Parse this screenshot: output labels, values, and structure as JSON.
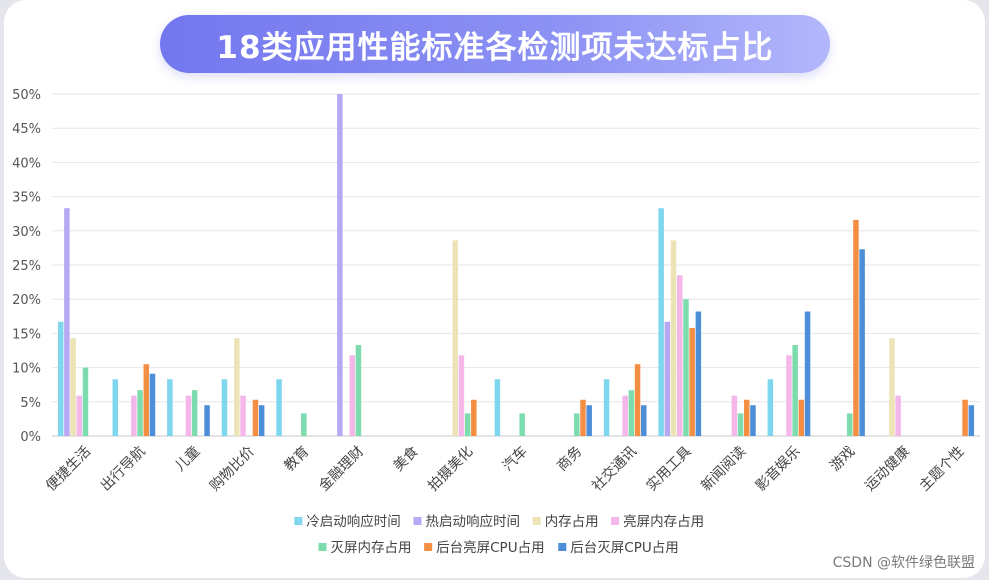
{
  "chart_data": {
    "type": "bar",
    "title": "18类应用性能标准各检测项未达标占比",
    "ylim": [
      0,
      50
    ],
    "yticks": [
      "0%",
      "5%",
      "10%",
      "15%",
      "20%",
      "25%",
      "30%",
      "35%",
      "40%",
      "45%",
      "50%"
    ],
    "grid": true,
    "legend_placement": "bottom",
    "categories": [
      "便捷生活",
      "出行导航",
      "儿童",
      "购物比价",
      "教育",
      "金融理财",
      "美食",
      "拍摄美化",
      "汽车",
      "商务",
      "社交通讯",
      "实用工具",
      "新闻阅读",
      "影音娱乐",
      "游戏",
      "运动健康",
      "主题个性"
    ],
    "series": [
      {
        "name": "冷启动响应时间",
        "color": "#7fd6ef",
        "values": [
          16.7,
          8.3,
          8.3,
          8.3,
          8.3,
          0,
          0,
          0,
          8.3,
          0,
          8.3,
          33.3,
          0,
          8.3,
          0,
          0,
          0
        ]
      },
      {
        "name": "热启动响应时间",
        "color": "#b6a8f2",
        "values": [
          33.3,
          0,
          0,
          0,
          0,
          50,
          0,
          0,
          0,
          0,
          0,
          16.7,
          0,
          0,
          0,
          0,
          0
        ]
      },
      {
        "name": "内存占用",
        "color": "#ece3b6",
        "values": [
          14.3,
          0,
          0,
          14.3,
          0,
          0,
          0,
          28.6,
          0,
          0,
          0,
          28.6,
          0,
          0,
          0,
          14.3,
          0
        ]
      },
      {
        "name": "亮屏内存占用",
        "color": "#f5b6ea",
        "values": [
          5.9,
          5.9,
          5.9,
          5.9,
          0,
          11.8,
          0,
          11.8,
          0,
          0,
          5.9,
          23.5,
          5.9,
          11.8,
          0,
          5.9,
          0
        ]
      },
      {
        "name": "灭屏内存占用",
        "color": "#7ddcad",
        "values": [
          10,
          6.7,
          6.7,
          0,
          3.3,
          13.3,
          0,
          3.3,
          3.3,
          3.3,
          6.7,
          20,
          3.3,
          13.3,
          3.3,
          0,
          0
        ]
      },
      {
        "name": "后台亮屏CPU占用",
        "color": "#f38e43",
        "values": [
          0,
          10.5,
          0,
          5.3,
          0,
          0,
          0,
          5.3,
          0,
          5.3,
          10.5,
          15.8,
          5.3,
          5.3,
          31.6,
          0,
          5.3
        ]
      },
      {
        "name": "后台灭屏CPU占用",
        "color": "#4c8ed8",
        "values": [
          0,
          9.1,
          4.5,
          4.5,
          0,
          0,
          0,
          0,
          0,
          4.5,
          4.5,
          18.2,
          4.5,
          18.2,
          27.3,
          0,
          4.5
        ]
      }
    ]
  },
  "watermark": "CSDN @软件绿色联盟"
}
